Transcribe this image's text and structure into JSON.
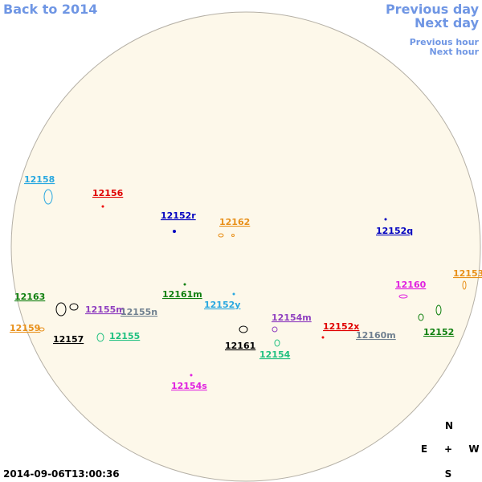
{
  "nav": {
    "back": "Back to 2014",
    "previous_day": "Previous day",
    "next_day": "Next day",
    "previous_hour": "Previous hour",
    "next_hour": "Next hour"
  },
  "regions": [
    "12158",
    "12156",
    "12152r",
    "12162",
    "12152q",
    "12153",
    "12160",
    "12163",
    "12161m",
    "12152y",
    "12155m",
    "12155n",
    "12154m",
    "12159",
    "12152x",
    "12152",
    "12157",
    "12155",
    "12160m",
    "12161",
    "12154",
    "12154s"
  ],
  "timestamp": "2014-09-06T13:00:36",
  "compass": {
    "north": "N",
    "east": "E",
    "center": "+",
    "west": "W",
    "south": "S"
  }
}
